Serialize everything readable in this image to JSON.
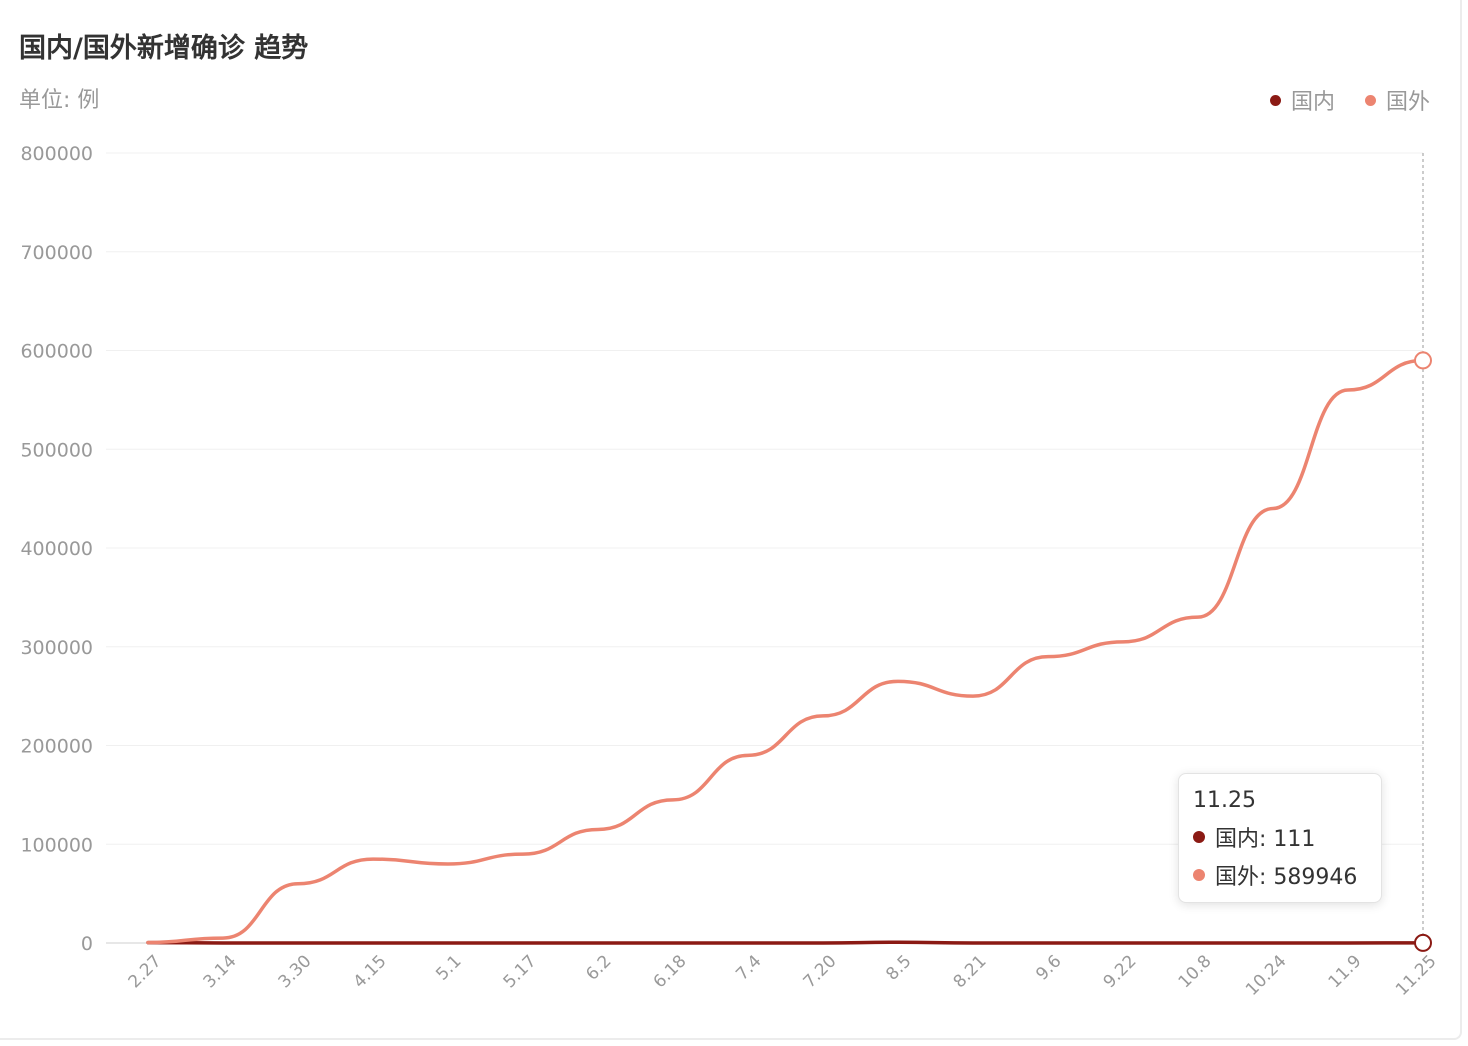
{
  "header": {
    "title": "国内/国外新增确诊 趋势",
    "unit": "单位: 例"
  },
  "legend": [
    {
      "name": "国内",
      "color": "#8b1a14"
    },
    {
      "name": "国外",
      "color": "#ec8470"
    }
  ],
  "tooltip": {
    "date": "11.25",
    "rows": [
      {
        "label": "国内: 111",
        "color": "#8b1a14"
      },
      {
        "label": "国外: 589946",
        "color": "#ec8470"
      }
    ]
  },
  "chart_data": {
    "type": "line",
    "ylim": [
      0,
      800000
    ],
    "grid": true,
    "legend_position": "top-right",
    "y_ticks": [
      "800000",
      "700000",
      "600000",
      "500000",
      "400000",
      "300000",
      "200000",
      "100000",
      "0"
    ],
    "x_ticks": [
      "2.27",
      "3.14",
      "3.30",
      "4.15",
      "5.1",
      "5.17",
      "6.2",
      "6.18",
      "7.4",
      "7.20",
      "8.5",
      "8.21",
      "9.6",
      "9.22",
      "10.8",
      "10.24",
      "11.9",
      "11.25"
    ],
    "series": [
      {
        "name": "国内",
        "color": "#8b1a14",
        "values": [
          {
            "x": "2.27",
            "y": 400
          },
          {
            "x": "3.14",
            "y": 30
          },
          {
            "x": "3.30",
            "y": 50
          },
          {
            "x": "4.15",
            "y": 40
          },
          {
            "x": "5.1",
            "y": 10
          },
          {
            "x": "5.17",
            "y": 10
          },
          {
            "x": "6.2",
            "y": 10
          },
          {
            "x": "6.18",
            "y": 30
          },
          {
            "x": "7.4",
            "y": 10
          },
          {
            "x": "7.20",
            "y": 20
          },
          {
            "x": "8.5",
            "y": 800
          },
          {
            "x": "8.21",
            "y": 20
          },
          {
            "x": "9.6",
            "y": 10
          },
          {
            "x": "9.22",
            "y": 15
          },
          {
            "x": "10.8",
            "y": 20
          },
          {
            "x": "10.24",
            "y": 25
          },
          {
            "x": "11.9",
            "y": 20
          },
          {
            "x": "11.25",
            "y": 111
          }
        ]
      },
      {
        "name": "国外",
        "color": "#ec8470",
        "values": [
          {
            "x": "2.27",
            "y": 500
          },
          {
            "x": "3.14",
            "y": 5000
          },
          {
            "x": "3.30",
            "y": 60000
          },
          {
            "x": "4.15",
            "y": 85000
          },
          {
            "x": "5.1",
            "y": 80000
          },
          {
            "x": "5.17",
            "y": 90000
          },
          {
            "x": "6.2",
            "y": 115000
          },
          {
            "x": "6.18",
            "y": 145000
          },
          {
            "x": "7.4",
            "y": 190000
          },
          {
            "x": "7.20",
            "y": 230000
          },
          {
            "x": "8.5",
            "y": 265000
          },
          {
            "x": "8.21",
            "y": 250000
          },
          {
            "x": "9.6",
            "y": 290000
          },
          {
            "x": "9.22",
            "y": 305000
          },
          {
            "x": "10.8",
            "y": 330000
          },
          {
            "x": "10.24",
            "y": 440000
          },
          {
            "x": "11.9",
            "y": 560000
          },
          {
            "x": "11.25",
            "y": 589946
          }
        ]
      }
    ]
  }
}
